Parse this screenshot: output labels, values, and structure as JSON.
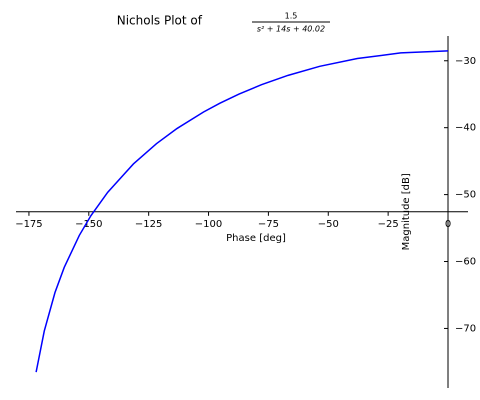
{
  "chart_data": {
    "type": "line",
    "title": "Nichols Plot of",
    "title_fraction": {
      "numerator": "1.5",
      "denominator": "s² + 14s + 40.02"
    },
    "x_label": "Phase [deg]",
    "y_label": "Magnitude [dB]",
    "series": [
      {
        "color": "#0000ff",
        "x": [
          0,
          -19.74,
          -37.86,
          -53.56,
          -66.78,
          -77.89,
          -87.26,
          -95.24,
          -102.08,
          -113.19,
          -121.75,
          -131.38,
          -142.12,
          -149.11,
          -153.97,
          -160.25,
          -164.12,
          -168.6,
          -172.0
        ],
        "values": [
          -28.52,
          -28.83,
          -29.66,
          -30.83,
          -32.18,
          -33.58,
          -34.97,
          -36.34,
          -37.66,
          -40.13,
          -42.39,
          -45.42,
          -49.66,
          -53.15,
          -56.1,
          -60.87,
          -64.63,
          -70.39,
          -76.53
        ]
      }
    ],
    "xlim": [
      -180.4,
      8.35
    ],
    "ylim": [
      -78.9,
      -26.3
    ],
    "x_axis_at": -52.57,
    "y_axis_at": 0,
    "xticks": [
      {
        "value": -175,
        "label": "−175"
      },
      {
        "value": -150,
        "label": "−150"
      },
      {
        "value": -125,
        "label": "−125"
      },
      {
        "value": -100,
        "label": "−100"
      },
      {
        "value": -75,
        "label": "−75"
      },
      {
        "value": -50,
        "label": "−50"
      },
      {
        "value": -25,
        "label": "−25"
      },
      0
    ],
    "yticks": [
      {
        "value": -30,
        "label": "−30"
      },
      {
        "value": -40,
        "label": "−40"
      },
      {
        "value": -50,
        "label": "−50"
      },
      {
        "value": -60,
        "label": "−60"
      },
      {
        "value": -70,
        "label": "−70"
      }
    ]
  }
}
